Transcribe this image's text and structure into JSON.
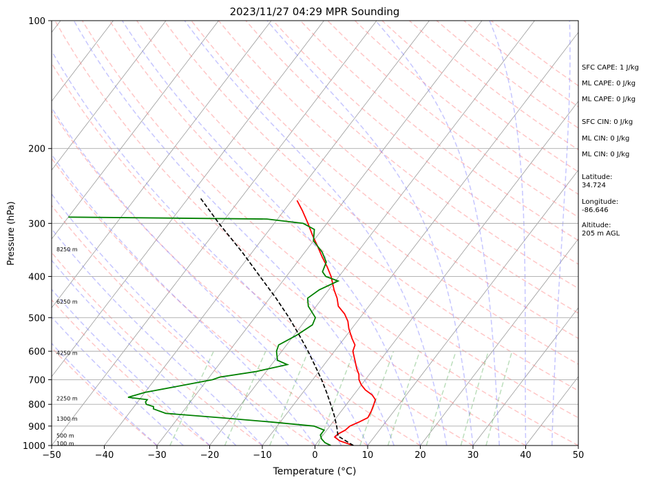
{
  "chart_data": {
    "type": "line",
    "title": "2023/11/27 04:29 MPR Sounding",
    "xlabel": "Temperature (°C)",
    "ylabel": "Pressure (hPa)",
    "xlim": [
      -50,
      50
    ],
    "ylim": [
      1000,
      100
    ],
    "y_scale": "log",
    "x_ticks": [
      -50,
      -40,
      -30,
      -20,
      -10,
      0,
      10,
      20,
      30,
      40,
      50
    ],
    "x_tick_labels": [
      "−50",
      "−40",
      "−30",
      "−20",
      "−10",
      "0",
      "10",
      "20",
      "30",
      "40",
      "50"
    ],
    "y_ticks": [
      100,
      200,
      300,
      400,
      500,
      600,
      700,
      800,
      900,
      1000
    ],
    "y_tick_labels": [
      "100",
      "200",
      "300",
      "400",
      "500",
      "600",
      "700",
      "800",
      "900",
      "1000"
    ],
    "grid": true,
    "height_labels": [
      {
        "text": "100 m",
        "pressure": 988
      },
      {
        "text": "500 m",
        "pressure": 947
      },
      {
        "text": "1300 m",
        "pressure": 865
      },
      {
        "text": "2250 m",
        "pressure": 775
      },
      {
        "text": "4250 m",
        "pressure": 605
      },
      {
        "text": "6250 m",
        "pressure": 458
      },
      {
        "text": "8250 m",
        "pressure": 345
      }
    ],
    "series": [
      {
        "kind": "temperature",
        "color": "#ff0000",
        "points": [
          {
            "p": 1000,
            "t": 7.3
          },
          {
            "p": 975,
            "t": 4.0
          },
          {
            "p": 955,
            "t": 2.5
          },
          {
            "p": 940,
            "t": 2.7
          },
          {
            "p": 920,
            "t": 3.5
          },
          {
            "p": 900,
            "t": 3.8
          },
          {
            "p": 880,
            "t": 5.0
          },
          {
            "p": 860,
            "t": 6.0
          },
          {
            "p": 830,
            "t": 5.7
          },
          {
            "p": 800,
            "t": 5.2
          },
          {
            "p": 780,
            "t": 4.8
          },
          {
            "p": 760,
            "t": 3.5
          },
          {
            "p": 740,
            "t": 1.5
          },
          {
            "p": 720,
            "t": 0.0
          },
          {
            "p": 700,
            "t": -1.2
          },
          {
            "p": 680,
            "t": -2.0
          },
          {
            "p": 660,
            "t": -3.2
          },
          {
            "p": 630,
            "t": -4.8
          },
          {
            "p": 600,
            "t": -6.5
          },
          {
            "p": 580,
            "t": -7.0
          },
          {
            "p": 560,
            "t": -8.5
          },
          {
            "p": 530,
            "t": -10.6
          },
          {
            "p": 510,
            "t": -11.8
          },
          {
            "p": 490,
            "t": -13.5
          },
          {
            "p": 470,
            "t": -15.8
          },
          {
            "p": 450,
            "t": -17.2
          },
          {
            "p": 430,
            "t": -19.0
          },
          {
            "p": 400,
            "t": -21.5
          },
          {
            "p": 380,
            "t": -23.6
          },
          {
            "p": 360,
            "t": -26.0
          },
          {
            "p": 340,
            "t": -28.4
          },
          {
            "p": 320,
            "t": -31.0
          },
          {
            "p": 300,
            "t": -33.6
          },
          {
            "p": 280,
            "t": -36.5
          },
          {
            "p": 265,
            "t": -39.0
          }
        ]
      },
      {
        "kind": "dewpoint",
        "color": "#008000",
        "points": [
          {
            "p": 1000,
            "t": 3.0
          },
          {
            "p": 985,
            "t": 1.5
          },
          {
            "p": 965,
            "t": 0.3
          },
          {
            "p": 945,
            "t": -0.5
          },
          {
            "p": 920,
            "t": -0.5
          },
          {
            "p": 900,
            "t": -3.0
          },
          {
            "p": 880,
            "t": -12.0
          },
          {
            "p": 860,
            "t": -22.0
          },
          {
            "p": 840,
            "t": -33.0
          },
          {
            "p": 820,
            "t": -36.0
          },
          {
            "p": 810,
            "t": -36.3
          },
          {
            "p": 800,
            "t": -38.0
          },
          {
            "p": 790,
            "t": -38.5
          },
          {
            "p": 780,
            "t": -38.5
          },
          {
            "p": 770,
            "t": -42.5
          },
          {
            "p": 750,
            "t": -40.0
          },
          {
            "p": 720,
            "t": -33.5
          },
          {
            "p": 700,
            "t": -29.0
          },
          {
            "p": 690,
            "t": -28.0
          },
          {
            "p": 670,
            "t": -22.0
          },
          {
            "p": 645,
            "t": -17.0
          },
          {
            "p": 630,
            "t": -19.5
          },
          {
            "p": 600,
            "t": -21.0
          },
          {
            "p": 580,
            "t": -21.5
          },
          {
            "p": 550,
            "t": -19.5
          },
          {
            "p": 520,
            "t": -18.0
          },
          {
            "p": 500,
            "t": -18.5
          },
          {
            "p": 470,
            "t": -21.5
          },
          {
            "p": 450,
            "t": -22.8
          },
          {
            "p": 430,
            "t": -21.8
          },
          {
            "p": 410,
            "t": -19.5
          },
          {
            "p": 400,
            "t": -22.5
          },
          {
            "p": 390,
            "t": -23.8
          },
          {
            "p": 370,
            "t": -24.5
          },
          {
            "p": 350,
            "t": -26.8
          },
          {
            "p": 330,
            "t": -30.0
          },
          {
            "p": 310,
            "t": -31.5
          },
          {
            "p": 300,
            "t": -34.5
          },
          {
            "p": 293,
            "t": -42.0
          },
          {
            "p": 290,
            "t": -80.0
          }
        ]
      },
      {
        "kind": "parcel",
        "color": "#000000",
        "points": [
          {
            "p": 1000,
            "t": 7.3
          },
          {
            "p": 950,
            "t": 3.0
          },
          {
            "p": 900,
            "t": 1.3
          },
          {
            "p": 850,
            "t": -0.7
          },
          {
            "p": 800,
            "t": -3.0
          },
          {
            "p": 750,
            "t": -5.5
          },
          {
            "p": 700,
            "t": -8.3
          },
          {
            "p": 650,
            "t": -11.5
          },
          {
            "p": 600,
            "t": -15.0
          },
          {
            "p": 550,
            "t": -19.0
          },
          {
            "p": 500,
            "t": -23.5
          },
          {
            "p": 450,
            "t": -28.8
          },
          {
            "p": 400,
            "t": -35.0
          },
          {
            "p": 350,
            "t": -42.0
          },
          {
            "p": 300,
            "t": -50.5
          },
          {
            "p": 260,
            "t": -58.0
          }
        ]
      }
    ]
  },
  "side_stats": [
    "SFC CAPE: 1 J/kg",
    "ML CAPE: 0 J/kg",
    "ML CAPE: 0 J/kg",
    "SFC CIN: 0 J/kg",
    "ML CIN: 0 J/kg",
    "ML CIN: 0 J/kg",
    "Latitude:",
    "34.724",
    "Longitude:",
    "-86.646",
    "Altitude:",
    "205 m AGL"
  ]
}
